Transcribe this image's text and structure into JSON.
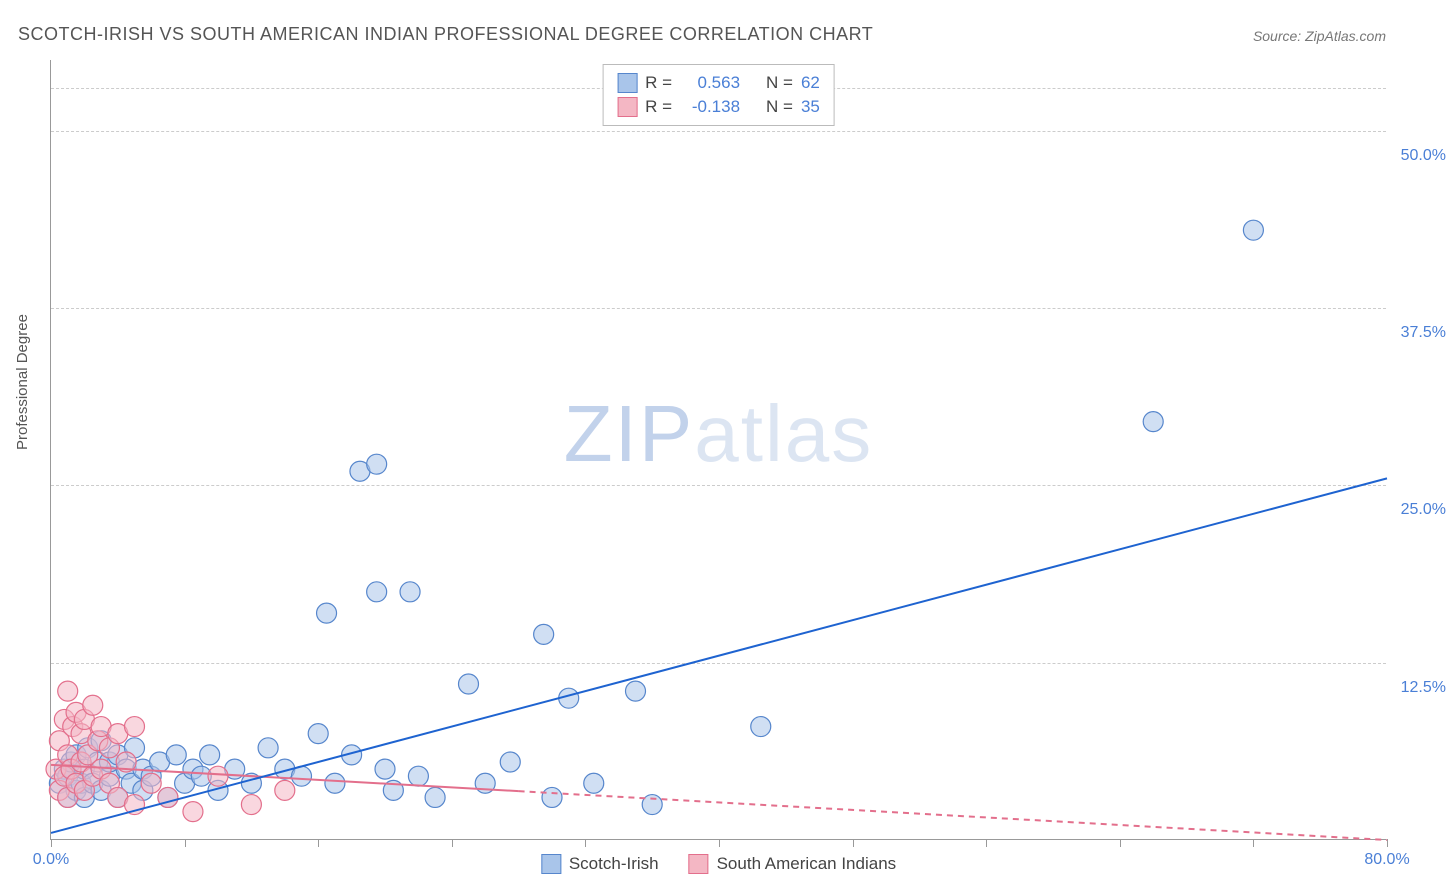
{
  "title": "SCOTCH-IRISH VS SOUTH AMERICAN INDIAN PROFESSIONAL DEGREE CORRELATION CHART",
  "source_prefix": "Source: ",
  "source_name": "ZipAtlas.com",
  "y_axis_label": "Professional Degree",
  "watermark_bold": "ZIP",
  "watermark_light": "atlas",
  "chart": {
    "type": "scatter",
    "background_color": "#ffffff",
    "grid_color": "#cccccc",
    "axis_color": "#999999",
    "xlim": [
      0,
      80
    ],
    "ylim": [
      0,
      55
    ],
    "x_ticks": [
      0,
      8,
      16,
      24,
      32,
      40,
      48,
      56,
      64,
      72,
      80
    ],
    "x_tick_labels": {
      "0": "0.0%",
      "80": "80.0%"
    },
    "y_gridlines": [
      12.5,
      25.0,
      37.5,
      50.0
    ],
    "y_tick_labels": [
      "12.5%",
      "25.0%",
      "37.5%",
      "50.0%"
    ],
    "y_tick_extra_top": 2.0,
    "series": [
      {
        "name": "Scotch-Irish",
        "fill_color": "#a9c5ea",
        "stroke_color": "#5686cc",
        "fill_opacity": 0.55,
        "marker_radius": 10,
        "r_value": "0.563",
        "n_value": "62",
        "trend": {
          "x1": 0,
          "y1": 0.5,
          "x2": 80,
          "y2": 25.5,
          "color": "#1e63d0",
          "width": 2,
          "dash_after_x": null
        },
        "points": [
          [
            0.5,
            4.0
          ],
          [
            0.8,
            5.0
          ],
          [
            1.0,
            3.0
          ],
          [
            1.0,
            4.5
          ],
          [
            1.2,
            5.5
          ],
          [
            1.5,
            3.5
          ],
          [
            1.5,
            6.0
          ],
          [
            1.8,
            4.0
          ],
          [
            2.0,
            5.0
          ],
          [
            2.0,
            3.0
          ],
          [
            2.2,
            6.5
          ],
          [
            2.5,
            4.0
          ],
          [
            2.8,
            5.5
          ],
          [
            3.0,
            3.5
          ],
          [
            3.0,
            7.0
          ],
          [
            3.5,
            4.5
          ],
          [
            3.5,
            5.5
          ],
          [
            4.0,
            3.0
          ],
          [
            4.0,
            6.0
          ],
          [
            4.5,
            5.0
          ],
          [
            4.8,
            4.0
          ],
          [
            5.0,
            6.5
          ],
          [
            5.5,
            3.5
          ],
          [
            5.5,
            5.0
          ],
          [
            6.0,
            4.5
          ],
          [
            6.5,
            5.5
          ],
          [
            7.0,
            3.0
          ],
          [
            7.5,
            6.0
          ],
          [
            8.0,
            4.0
          ],
          [
            8.5,
            5.0
          ],
          [
            9.0,
            4.5
          ],
          [
            9.5,
            6.0
          ],
          [
            10.0,
            3.5
          ],
          [
            11.0,
            5.0
          ],
          [
            12.0,
            4.0
          ],
          [
            13.0,
            6.5
          ],
          [
            14.0,
            5.0
          ],
          [
            15.0,
            4.5
          ],
          [
            16.0,
            7.5
          ],
          [
            16.5,
            16.0
          ],
          [
            17.0,
            4.0
          ],
          [
            18.0,
            6.0
          ],
          [
            18.5,
            26.0
          ],
          [
            19.5,
            17.5
          ],
          [
            19.5,
            26.5
          ],
          [
            20.0,
            5.0
          ],
          [
            20.5,
            3.5
          ],
          [
            21.5,
            17.5
          ],
          [
            22.0,
            4.5
          ],
          [
            23.0,
            3.0
          ],
          [
            25.0,
            11.0
          ],
          [
            26.0,
            4.0
          ],
          [
            27.5,
            5.5
          ],
          [
            29.5,
            14.5
          ],
          [
            30.0,
            3.0
          ],
          [
            31.0,
            10.0
          ],
          [
            32.5,
            4.0
          ],
          [
            35.0,
            10.5
          ],
          [
            36.0,
            2.5
          ],
          [
            42.5,
            8.0
          ],
          [
            66.0,
            29.5
          ],
          [
            72.0,
            43.0
          ]
        ]
      },
      {
        "name": "South American Indians",
        "fill_color": "#f4b7c4",
        "stroke_color": "#e36f8c",
        "fill_opacity": 0.55,
        "marker_radius": 10,
        "r_value": "-0.138",
        "n_value": "35",
        "trend": {
          "x1": 0,
          "y1": 5.3,
          "x2": 80,
          "y2": 0.0,
          "color": "#e36f8c",
          "width": 2,
          "dash_after_x": 28
        },
        "points": [
          [
            0.3,
            5.0
          ],
          [
            0.5,
            3.5
          ],
          [
            0.5,
            7.0
          ],
          [
            0.8,
            4.5
          ],
          [
            0.8,
            8.5
          ],
          [
            1.0,
            3.0
          ],
          [
            1.0,
            6.0
          ],
          [
            1.0,
            10.5
          ],
          [
            1.2,
            5.0
          ],
          [
            1.3,
            8.0
          ],
          [
            1.5,
            4.0
          ],
          [
            1.5,
            9.0
          ],
          [
            1.8,
            5.5
          ],
          [
            1.8,
            7.5
          ],
          [
            2.0,
            3.5
          ],
          [
            2.0,
            8.5
          ],
          [
            2.2,
            6.0
          ],
          [
            2.5,
            4.5
          ],
          [
            2.5,
            9.5
          ],
          [
            2.8,
            7.0
          ],
          [
            3.0,
            5.0
          ],
          [
            3.0,
            8.0
          ],
          [
            3.5,
            4.0
          ],
          [
            3.5,
            6.5
          ],
          [
            4.0,
            3.0
          ],
          [
            4.0,
            7.5
          ],
          [
            4.5,
            5.5
          ],
          [
            5.0,
            2.5
          ],
          [
            5.0,
            8.0
          ],
          [
            6.0,
            4.0
          ],
          [
            7.0,
            3.0
          ],
          [
            8.5,
            2.0
          ],
          [
            10.0,
            4.5
          ],
          [
            12.0,
            2.5
          ],
          [
            14.0,
            3.5
          ]
        ]
      }
    ],
    "legend_top": {
      "r_label": "R =",
      "n_label": "N ="
    },
    "legend_bottom_labels": [
      "Scotch-Irish",
      "South American Indians"
    ]
  }
}
